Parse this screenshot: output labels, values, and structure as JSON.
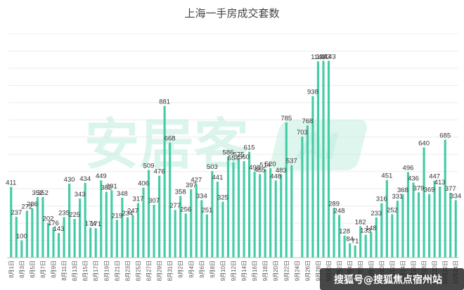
{
  "chart_data": {
    "type": "bar",
    "title": "上海一手房成交套数",
    "xlabel": "",
    "ylabel": "",
    "ylim": [
      0,
      1300
    ],
    "categories": [
      "8月1日",
      "8月2日",
      "8月3日",
      "8月4日",
      "8月5日",
      "8月6日",
      "8月7日",
      "8月8日",
      "8月9日",
      "8月10日",
      "8月11日",
      "8月12日",
      "8月13日",
      "8月14日",
      "8月15日",
      "8月16日",
      "8月17日",
      "8月18日",
      "8月19日",
      "8月20日",
      "8月21日",
      "8月22日",
      "8月23日",
      "8月24日",
      "8月25日",
      "8月26日",
      "8月27日",
      "8月28日",
      "8月29日",
      "8月30日",
      "8月31日",
      "9月1日",
      "9月2日",
      "9月3日",
      "9月4日",
      "9月5日",
      "9月6日",
      "9月7日",
      "9月8日",
      "9月9日",
      "9月10日",
      "9月11日",
      "9月12日",
      "9月13日",
      "9月14日",
      "9月15日",
      "9月16日",
      "9月17日",
      "9月18日",
      "9月19日",
      "9月20日",
      "9月21日",
      "9月22日",
      "9月23日",
      "9月24日",
      "9月25日",
      "9月26日",
      "9月27日",
      "9月28日",
      "9月29日",
      "9月30日",
      "10月1日",
      "10月2日",
      "10月3日",
      "10月4日",
      "10月5日",
      "10月6日",
      "10月7日",
      "10月8日",
      "10月9日",
      "10月10日",
      "10月11日",
      "10月12日",
      "10月13日",
      "10月14日",
      "10月15日",
      "10月16日",
      "10月17日",
      "10月18日",
      "10月19日",
      "10月20日",
      "10月21日",
      "10月22日",
      "10月23日",
      "10月24日"
    ],
    "values": [
      411,
      237,
      100,
      272,
      286,
      352,
      352,
      202,
      176,
      143,
      235,
      430,
      225,
      343,
      434,
      174,
      171,
      449,
      382,
      391,
      219,
      348,
      234,
      247,
      317,
      406,
      509,
      307,
      476,
      881,
      668,
      277,
      358,
      256,
      397,
      427,
      334,
      251,
      503,
      441,
      325,
      586,
      554,
      575,
      560,
      615,
      498,
      485,
      514,
      520,
      448,
      483,
      785,
      537,
      null,
      703,
      768,
      938,
      1140,
      1143,
      1143,
      289,
      248,
      128,
      84,
      71,
      182,
      133,
      148,
      233,
      316,
      451,
      252,
      331,
      368,
      496,
      436,
      379,
      640,
      369,
      447,
      413,
      685,
      377,
      334
    ],
    "value_labels": [
      "411",
      "237",
      "100",
      "272",
      "286",
      "352",
      "352",
      "202",
      "176",
      "143",
      "235",
      "430",
      "225",
      "343",
      "434",
      "174",
      "171",
      "449",
      "382",
      "391",
      "219",
      "348",
      "234",
      "247",
      "317",
      "406",
      "509",
      "307",
      "476",
      "881",
      "668",
      "277",
      "358",
      "256",
      "397",
      "427",
      "334",
      "251",
      "503",
      "441",
      "325",
      "586",
      "554",
      "575",
      "560",
      "615",
      "498",
      "485",
      "514",
      "520",
      "448",
      "483",
      "785",
      "537",
      "",
      "703",
      "768",
      "938",
      "1140",
      "1143",
      "1143",
      "289",
      "248",
      "128",
      "84",
      "71",
      "182",
      "133",
      "148",
      "233",
      "316",
      "451",
      "252",
      "331",
      "368",
      "496",
      "436",
      "379",
      "640",
      "369",
      "447",
      "413",
      "685",
      "377",
      "334"
    ],
    "tick_labels": [
      "8月1日",
      "8月3日",
      "8月5日",
      "8月7日",
      "8月9日",
      "8月11日",
      "8月13日",
      "8月15日",
      "8月17日",
      "8月19日",
      "8月21日",
      "8月23日",
      "8月25日",
      "8月27日",
      "8月29日",
      "8月31日",
      "9月2日",
      "9月4日",
      "9月6日",
      "9月8日",
      "9月10日",
      "9月12日",
      "9月14日",
      "9月16日",
      "9月18日",
      "9月20日",
      "9月22日",
      "9月24日",
      "9月26日",
      "9月28日",
      "9月30日",
      "10月2日",
      "10月4日",
      "10月6日",
      "10月8日",
      "10月10日",
      "10月12日",
      "10月14日",
      "10月16日",
      "10月18日",
      "10月20日",
      "10月22日",
      "10月24日"
    ],
    "grid": true,
    "legend": "none"
  },
  "watermark": {
    "text": "安居客",
    "logo_text": "AI"
  },
  "footer": {
    "text": "搜狐号@搜狐焦点宿州站"
  },
  "colors": {
    "bar": "#44cca6",
    "footer_bg": "#1f1f1f"
  }
}
